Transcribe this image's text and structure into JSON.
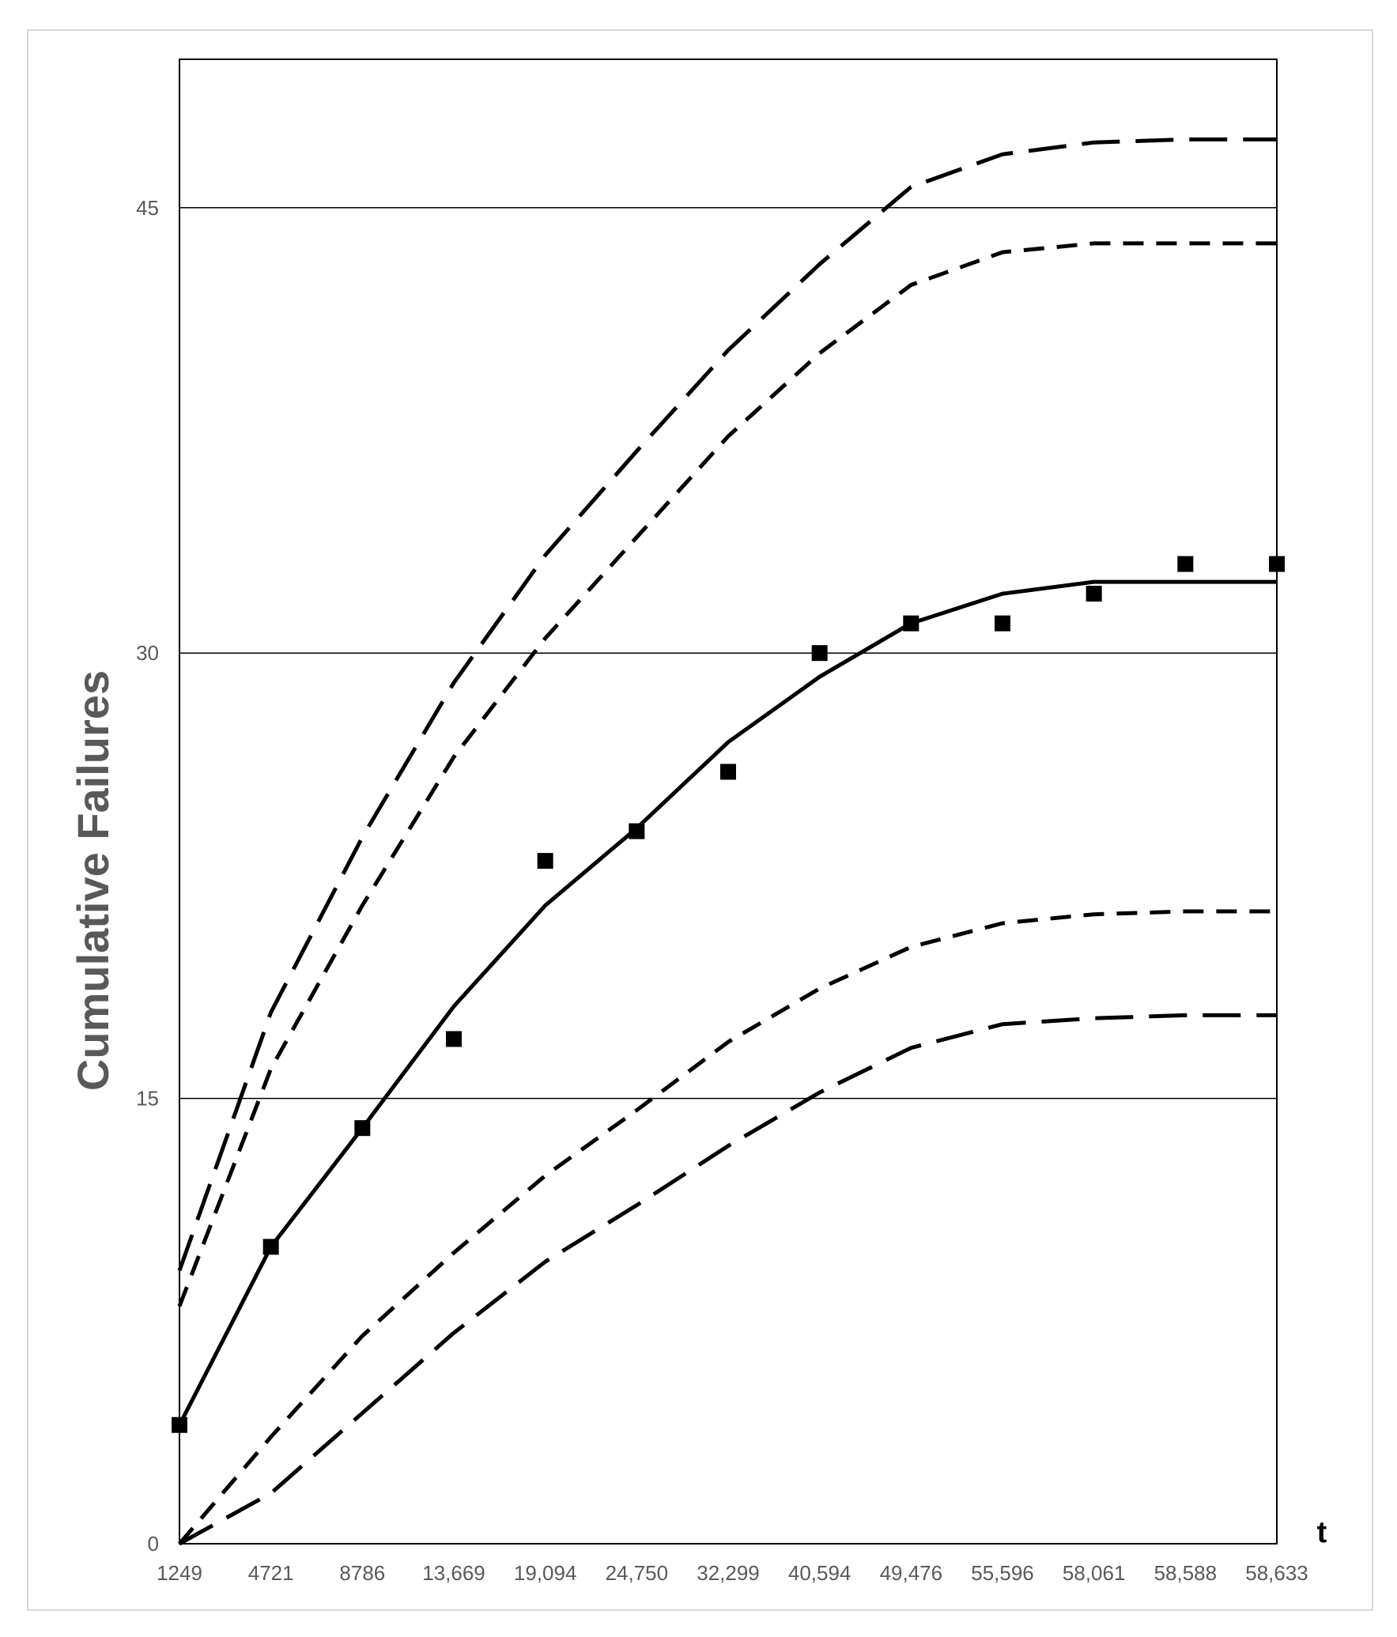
{
  "chart_data": {
    "type": "line",
    "title": "",
    "xlabel": "t",
    "ylabel": "Cumulative Failures",
    "categories": [
      "1249",
      "4721",
      "8786",
      "13,669",
      "19,094",
      "24,750",
      "32,299",
      "40,594",
      "49,476",
      "55,596",
      "58,061",
      "58,588",
      "58,633"
    ],
    "ylim": [
      0,
      50
    ],
    "yticks": [
      0,
      15,
      30,
      45
    ],
    "grid": "horizontal",
    "legend": "none",
    "series": [
      {
        "style": "markers",
        "values": [
          4,
          10,
          14,
          17,
          23,
          24,
          26,
          30,
          31,
          31,
          32,
          33,
          33
        ]
      },
      {
        "style": "solid",
        "values": [
          4,
          10,
          14,
          18.1,
          21.5,
          24.1,
          27,
          29.2,
          31,
          32,
          32.4,
          32.4,
          32.4
        ]
      },
      {
        "style": "long-dash",
        "values": [
          9.2,
          17.9,
          23.8,
          29,
          33.3,
          36.8,
          40.2,
          43.1,
          45.7,
          46.8,
          47.2,
          47.3,
          47.3
        ]
      },
      {
        "style": "short-dash",
        "values": [
          8,
          16,
          21.5,
          26.5,
          30.5,
          33.9,
          37.3,
          40.1,
          42.4,
          43.5,
          43.8,
          43.8,
          43.8
        ]
      },
      {
        "style": "short-dash",
        "values": [
          0,
          3.6,
          7,
          9.8,
          12.4,
          14.6,
          16.9,
          18.7,
          20.1,
          20.9,
          21.2,
          21.3,
          21.3
        ]
      },
      {
        "style": "long-dash",
        "values": [
          0,
          1.7,
          4.4,
          7.1,
          9.5,
          11.4,
          13.4,
          15.2,
          16.7,
          17.5,
          17.7,
          17.8,
          17.8
        ]
      }
    ]
  }
}
